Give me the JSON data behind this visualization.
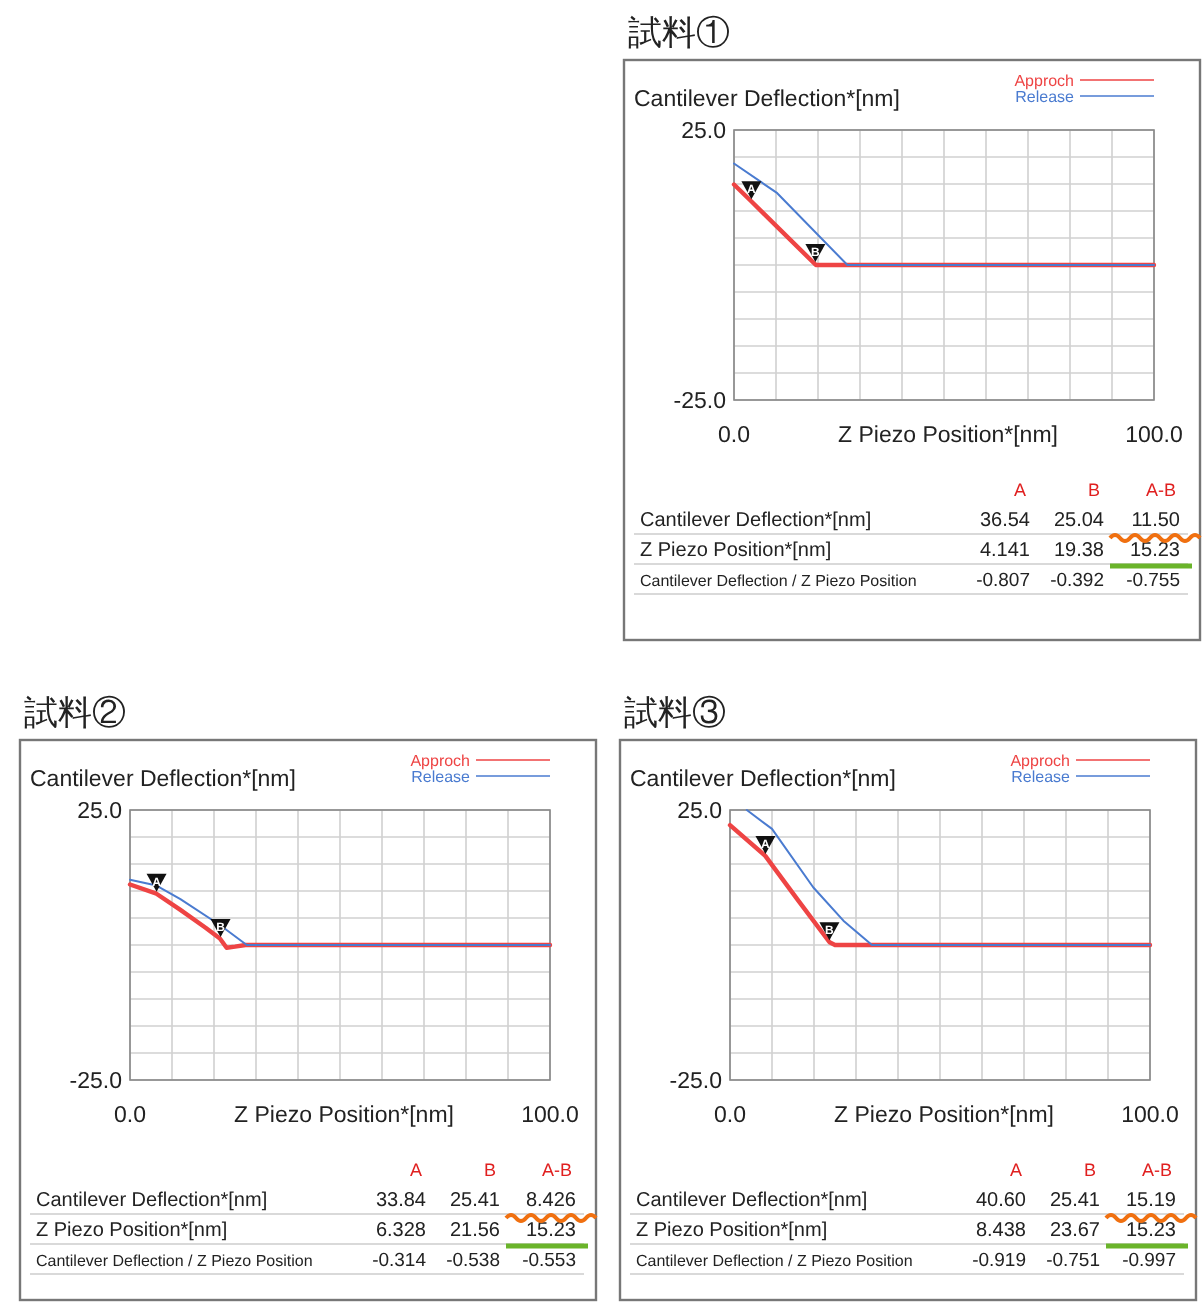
{
  "chart_data": [
    {
      "type": "line",
      "title": "試料①",
      "ylabel": "Cantilever Deflection*[nm]",
      "xlabel": "Z Piezo Position*[nm]",
      "legend": "top right",
      "grid": true,
      "marker": "none",
      "line_style": "solid",
      "xlim": [
        0,
        100
      ],
      "ylim": [
        -25,
        25
      ],
      "xticks": [
        {
          "value": 0,
          "label": "0.0"
        },
        {
          "value": 10,
          "label": null
        },
        {
          "value": 20,
          "label": null
        },
        {
          "value": 30,
          "label": null
        },
        {
          "value": 40,
          "label": null
        },
        {
          "value": 50,
          "label": null
        },
        {
          "value": 60,
          "label": null
        },
        {
          "value": 70,
          "label": null
        },
        {
          "value": 80,
          "label": null
        },
        {
          "value": 90,
          "label": null
        },
        {
          "value": 100,
          "label": "100.0"
        }
      ],
      "yticks": [
        {
          "value": -25,
          "label": "-25.0"
        },
        {
          "value": -20,
          "label": null
        },
        {
          "value": -15,
          "label": null
        },
        {
          "value": -10,
          "label": null
        },
        {
          "value": -5,
          "label": null
        },
        {
          "value": 0,
          "label": null
        },
        {
          "value": 5,
          "label": null
        },
        {
          "value": 10,
          "label": null
        },
        {
          "value": 15,
          "label": null
        },
        {
          "value": 20,
          "label": null
        },
        {
          "value": 25,
          "label": "25.0"
        }
      ],
      "series": [
        {
          "name": "Approch",
          "color": "#ee4444",
          "x": [
            0,
            4.1,
            19.5,
            100
          ],
          "values": [
            14.9,
            11.8,
            0,
            0
          ]
        },
        {
          "name": "Release",
          "color": "#4a7bd0",
          "x": [
            0,
            10.3,
            27,
            100
          ],
          "values": [
            18.8,
            13.3,
            0,
            0
          ]
        }
      ],
      "annotations": [
        {
          "text": "A",
          "x": 4.141,
          "y": 11.8
        },
        {
          "text": "B",
          "x": 19.38,
          "y": 0.2
        },
        "A",
        "B",
        "A-B",
        "Cantilever Deflection*[nm]",
        "36.54",
        "25.04",
        "11.50",
        "Z Piezo Position*[nm]",
        "4.141",
        "19.38",
        "15.23",
        "Cantilever Deflection / Z Piezo Position",
        "-0.807",
        "-0.392",
        "-0.755"
      ]
    },
    {
      "type": "line",
      "title": "試料②",
      "ylabel": "Cantilever Deflection*[nm]",
      "xlabel": "Z Piezo Position*[nm]",
      "legend": "top right",
      "grid": true,
      "marker": "none",
      "line_style": "solid",
      "xlim": [
        0,
        100
      ],
      "ylim": [
        -25,
        25
      ],
      "xticks": [
        {
          "value": 0,
          "label": "0.0"
        },
        {
          "value": 10,
          "label": null
        },
        {
          "value": 20,
          "label": null
        },
        {
          "value": 30,
          "label": null
        },
        {
          "value": 40,
          "label": null
        },
        {
          "value": 50,
          "label": null
        },
        {
          "value": 60,
          "label": null
        },
        {
          "value": 70,
          "label": null
        },
        {
          "value": 80,
          "label": null
        },
        {
          "value": 90,
          "label": null
        },
        {
          "value": 100,
          "label": "100.0"
        }
      ],
      "yticks": [
        {
          "value": -25,
          "label": "-25.0"
        },
        {
          "value": -20,
          "label": null
        },
        {
          "value": -15,
          "label": null
        },
        {
          "value": -10,
          "label": null
        },
        {
          "value": -5,
          "label": null
        },
        {
          "value": 0,
          "label": null
        },
        {
          "value": 5,
          "label": null
        },
        {
          "value": 10,
          "label": null
        },
        {
          "value": 15,
          "label": null
        },
        {
          "value": 20,
          "label": null
        },
        {
          "value": 25,
          "label": "25.0"
        }
      ],
      "series": [
        {
          "name": "Approch",
          "color": "#ee4444",
          "x": [
            0,
            6.3,
            12,
            18,
            21.4,
            23,
            25,
            27.5,
            100
          ],
          "values": [
            11.2,
            9.5,
            6.5,
            3.2,
            1.2,
            -0.5,
            -0.3,
            0,
            0
          ]
        },
        {
          "name": "Release",
          "color": "#4a7bd0",
          "x": [
            0,
            6.3,
            12,
            21.4,
            27.8,
            100
          ],
          "values": [
            12.1,
            11.0,
            8.5,
            3.7,
            0,
            0
          ]
        }
      ],
      "annotations": [
        {
          "text": "A",
          "x": 6.328,
          "y": 9.5
        },
        {
          "text": "B",
          "x": 21.56,
          "y": 1.1
        },
        "A",
        "B",
        "A-B",
        "Cantilever Deflection*[nm]",
        "33.84",
        "25.41",
        "8.426",
        "Z Piezo Position*[nm]",
        "6.328",
        "21.56",
        "15.23",
        "Cantilever Deflection / Z Piezo Position",
        "-0.314",
        "-0.538",
        "-0.553"
      ]
    },
    {
      "type": "line",
      "title": "試料③",
      "ylabel": "Cantilever Deflection*[nm]",
      "xlabel": "Z Piezo Position*[nm]",
      "legend": "top right",
      "grid": true,
      "marker": "none",
      "line_style": "solid",
      "xlim": [
        0,
        100
      ],
      "ylim": [
        -25,
        25
      ],
      "xticks": [
        {
          "value": 0,
          "label": "0.0"
        },
        {
          "value": 10,
          "label": null
        },
        {
          "value": 20,
          "label": null
        },
        {
          "value": 30,
          "label": null
        },
        {
          "value": 40,
          "label": null
        },
        {
          "value": 50,
          "label": null
        },
        {
          "value": 60,
          "label": null
        },
        {
          "value": 70,
          "label": null
        },
        {
          "value": 80,
          "label": null
        },
        {
          "value": 90,
          "label": null
        },
        {
          "value": 100,
          "label": "100.0"
        }
      ],
      "yticks": [
        {
          "value": -25,
          "label": "-25.0"
        },
        {
          "value": -20,
          "label": null
        },
        {
          "value": -15,
          "label": null
        },
        {
          "value": -10,
          "label": null
        },
        {
          "value": -5,
          "label": null
        },
        {
          "value": 0,
          "label": null
        },
        {
          "value": 5,
          "label": null
        },
        {
          "value": 10,
          "label": null
        },
        {
          "value": 15,
          "label": null
        },
        {
          "value": 20,
          "label": null
        },
        {
          "value": 25,
          "label": "25.0"
        }
      ],
      "series": [
        {
          "name": "Approch",
          "color": "#ee4444",
          "x": [
            0,
            8.4,
            16,
            23.7,
            25,
            100
          ],
          "values": [
            22.2,
            16.5,
            8.5,
            0.5,
            0,
            0
          ]
        },
        {
          "name": "Release",
          "color": "#4a7bd0",
          "x": [
            4,
            10,
            19.8,
            27,
            33.8,
            100
          ],
          "values": [
            25,
            21.5,
            10.7,
            4.5,
            0,
            0
          ]
        }
      ],
      "annotations": [
        {
          "text": "A",
          "x": 8.438,
          "y": 16.5
        },
        {
          "text": "B",
          "x": 23.67,
          "y": 0.5
        },
        "A",
        "B",
        "A-B",
        "Cantilever Deflection*[nm]",
        "40.60",
        "25.41",
        "15.19",
        "Z Piezo Position*[nm]",
        "8.438",
        "23.67",
        "15.23",
        "Cantilever Deflection / Z Piezo Position",
        "-0.919",
        "-0.751",
        "-0.997"
      ]
    }
  ]
}
